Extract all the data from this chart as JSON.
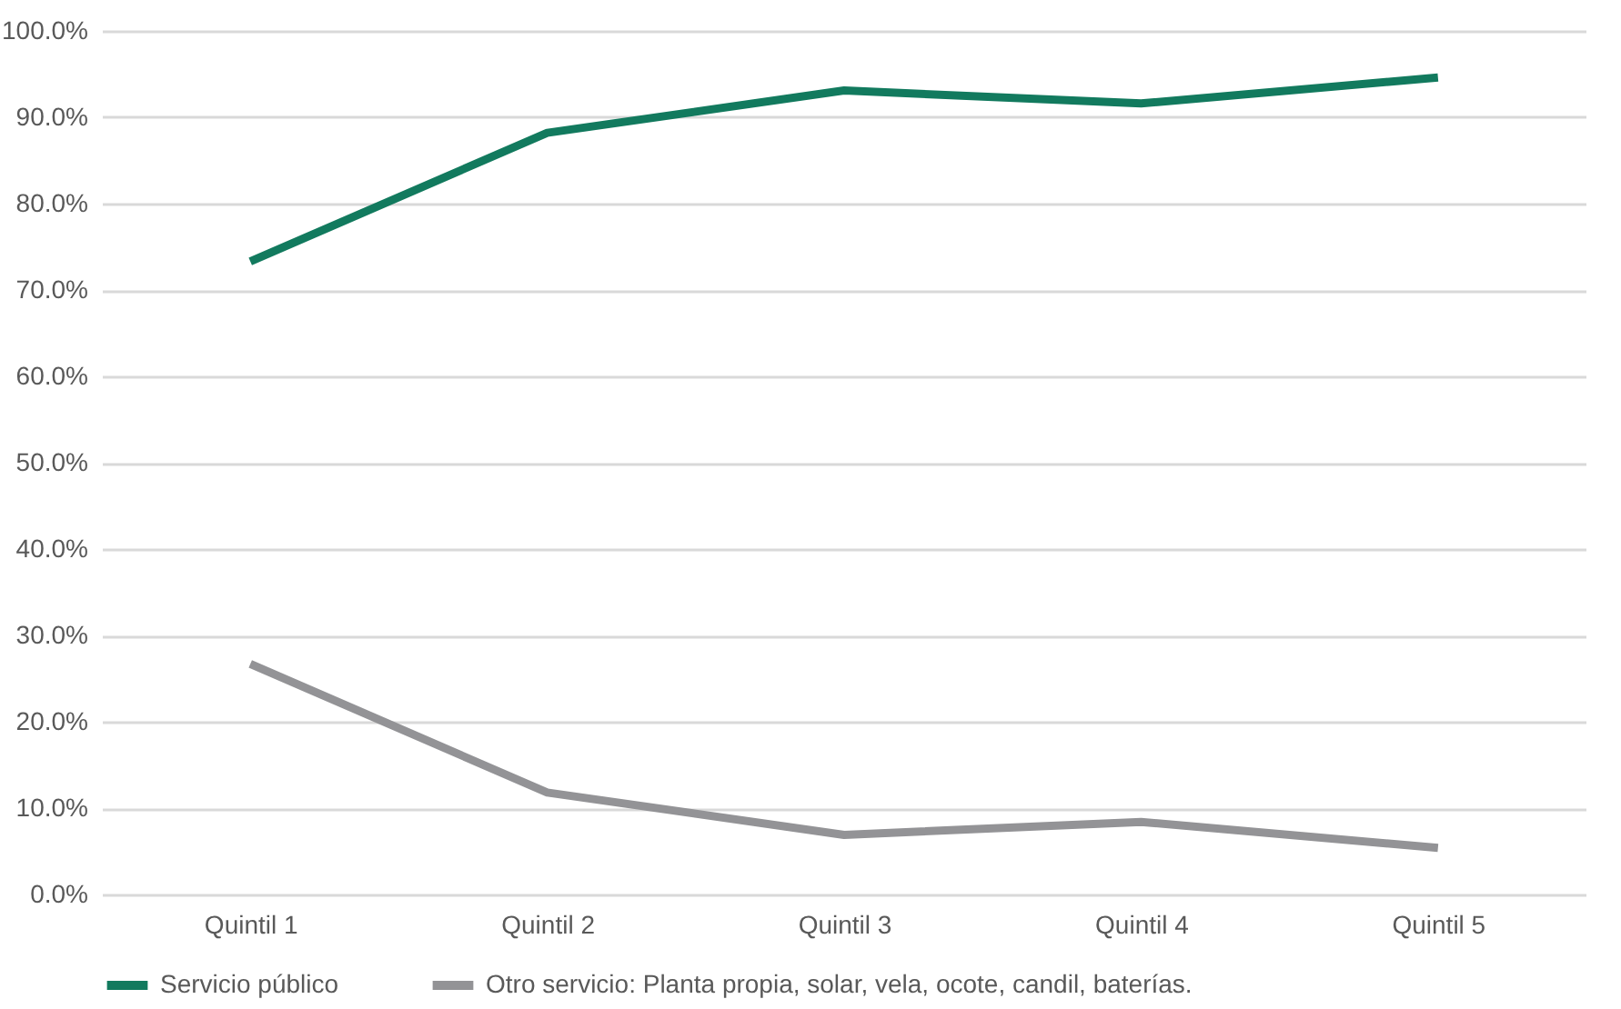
{
  "chart_data": {
    "type": "line",
    "categories": [
      "Quintil 1",
      "Quintil 2",
      "Quintil 3",
      "Quintil 4",
      "Quintil 5"
    ],
    "series": [
      {
        "name": "Servicio público",
        "color": "#127a5e",
        "values": [
          73.3,
          88.2,
          93.1,
          91.6,
          94.6
        ]
      },
      {
        "name": "Otro servicio: Planta propia, solar, vela, ocote, candil, baterías.",
        "color": "#939396",
        "values": [
          26.7,
          11.8,
          6.9,
          8.4,
          5.4
        ]
      }
    ],
    "ylim": [
      0,
      100
    ],
    "yticks": [
      {
        "value": 0,
        "label": "0.0%"
      },
      {
        "value": 10,
        "label": "10.0%"
      },
      {
        "value": 20,
        "label": "20.0%"
      },
      {
        "value": 30,
        "label": "30.0%"
      },
      {
        "value": 40,
        "label": "40.0%"
      },
      {
        "value": 50,
        "label": "50.0%"
      },
      {
        "value": 60,
        "label": "60.0%"
      },
      {
        "value": 70,
        "label": "70.0%"
      },
      {
        "value": 80,
        "label": "80.0%"
      },
      {
        "value": 90,
        "label": "90.0%"
      },
      {
        "value": 100,
        "label": "100.0%"
      }
    ],
    "grid": "y",
    "legend": "bottom",
    "marker": "none",
    "line_style": "solid"
  }
}
